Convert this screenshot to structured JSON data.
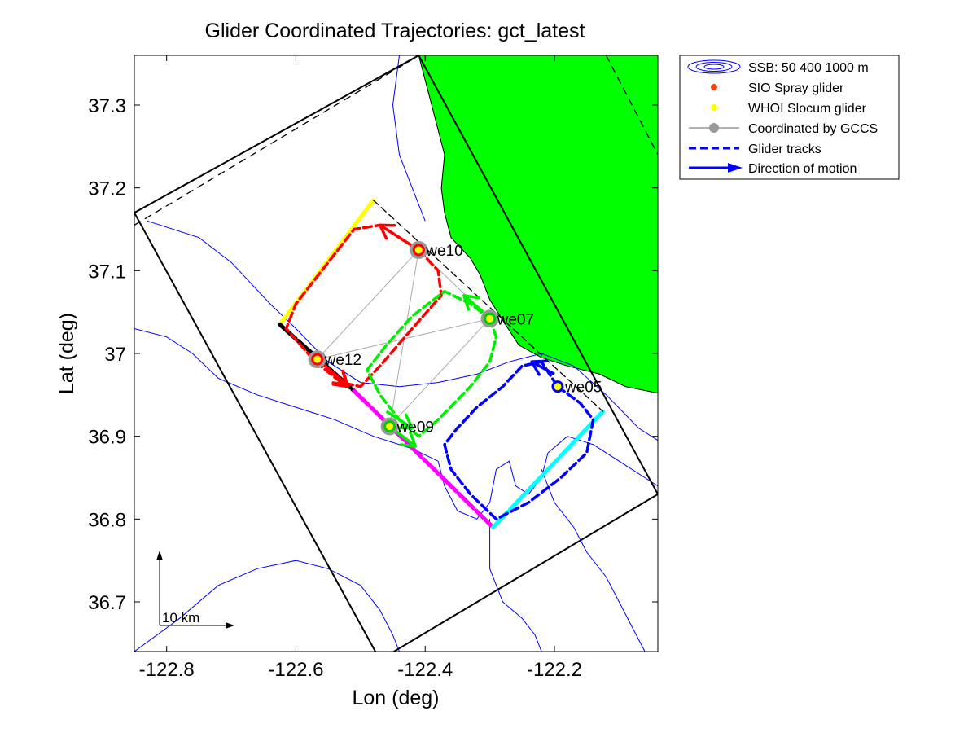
{
  "chart_data": {
    "type": "line",
    "title": "Glider Coordinated Trajectories: gct_latest",
    "xlabel": "Lon (deg)",
    "ylabel": "Lat (deg)",
    "xlim": [
      -122.85,
      -122.04
    ],
    "ylim": [
      36.64,
      37.36
    ],
    "xticks": [
      -122.8,
      -122.6,
      -122.4,
      -122.2
    ],
    "xtick_labels": [
      "-122.8",
      "-122.6",
      "-122.4",
      "-122.2"
    ],
    "yticks": [
      36.7,
      36.8,
      36.9,
      37.0,
      37.1,
      37.2,
      37.3
    ],
    "ytick_labels": [
      "36.7",
      "36.8",
      "36.9",
      "37",
      "37.1",
      "37.2",
      "37.3"
    ],
    "grid": false,
    "legend_position": "outside-top-right",
    "legend": [
      {
        "label": "SSB: 50   400  1000 m",
        "symbol": "contour-ellipses",
        "color": "#0000ff"
      },
      {
        "label": "SIO Spray glider",
        "symbol": "dot",
        "color": "#ff4000"
      },
      {
        "label": "WHOI Slocum glider",
        "symbol": "dot",
        "color": "#ffff00"
      },
      {
        "label": "Coordinated by GCCS",
        "symbol": "line-circle",
        "color": "#999999"
      },
      {
        "label": "Glider tracks",
        "symbol": "dashed-line",
        "color": "#0000ff"
      },
      {
        "label": "Direction of motion",
        "symbol": "arrow",
        "color": "#0000ff"
      }
    ],
    "land": {
      "color": "#00ff00",
      "boundary": [
        [
          -122.41,
          37.36
        ],
        [
          -122.39,
          37.3
        ],
        [
          -122.37,
          37.24
        ],
        [
          -122.375,
          37.2
        ],
        [
          -122.37,
          37.17
        ],
        [
          -122.36,
          37.14
        ],
        [
          -122.33,
          37.115
        ],
        [
          -122.315,
          37.095
        ],
        [
          -122.3,
          37.065
        ],
        [
          -122.28,
          37.04
        ],
        [
          -122.255,
          37.01
        ],
        [
          -122.22,
          36.995
        ],
        [
          -122.18,
          36.985
        ],
        [
          -122.13,
          36.975
        ],
        [
          -122.09,
          36.96
        ],
        [
          -122.04,
          36.952
        ],
        [
          -122.04,
          37.36
        ]
      ]
    },
    "bathymetry_contours": [
      {
        "depth_m": 50,
        "color": "#0000ff",
        "points": [
          [
            -122.83,
            37.16
          ],
          [
            -122.75,
            37.14
          ],
          [
            -122.7,
            37.11
          ],
          [
            -122.64,
            37.06
          ],
          [
            -122.6,
            37.03
          ],
          [
            -122.55,
            36.99
          ],
          [
            -122.5,
            36.965
          ],
          [
            -122.44,
            36.96
          ],
          [
            -122.38,
            36.965
          ],
          [
            -122.32,
            36.975
          ],
          [
            -122.27,
            36.99
          ],
          [
            -122.22,
            37.0
          ],
          [
            -122.17,
            36.985
          ],
          [
            -122.12,
            36.95
          ],
          [
            -122.07,
            36.91
          ],
          [
            -122.04,
            36.895
          ]
        ]
      },
      {
        "depth_m": 400,
        "color": "#0000ff",
        "points": [
          [
            -122.85,
            37.03
          ],
          [
            -122.8,
            37.02
          ],
          [
            -122.76,
            37.0
          ],
          [
            -122.72,
            36.97
          ],
          [
            -122.66,
            36.95
          ],
          [
            -122.6,
            36.935
          ],
          [
            -122.54,
            36.92
          ],
          [
            -122.48,
            36.9
          ],
          [
            -122.42,
            36.885
          ],
          [
            -122.38,
            36.87
          ],
          [
            -122.37,
            36.84
          ],
          [
            -122.35,
            36.81
          ],
          [
            -122.32,
            36.8
          ],
          [
            -122.3,
            36.82
          ],
          [
            -122.29,
            36.86
          ],
          [
            -122.27,
            36.87
          ],
          [
            -122.26,
            36.84
          ],
          [
            -122.24,
            36.83
          ],
          [
            -122.22,
            36.85
          ],
          [
            -122.21,
            36.88
          ],
          [
            -122.18,
            36.9
          ],
          [
            -122.14,
            36.89
          ],
          [
            -122.1,
            36.87
          ],
          [
            -122.06,
            36.85
          ],
          [
            -122.04,
            36.84
          ]
        ]
      },
      {
        "depth_m": 1000,
        "color": "#0000ff",
        "points": [
          [
            -122.3,
            36.8
          ],
          [
            -122.3,
            36.74
          ],
          [
            -122.28,
            36.7
          ],
          [
            -122.25,
            36.68
          ],
          [
            -122.23,
            36.66
          ],
          [
            -122.22,
            36.64
          ]
        ]
      },
      {
        "depth_m": 1000,
        "color": "#0000ff",
        "points": [
          [
            -122.22,
            36.86
          ],
          [
            -122.2,
            36.82
          ],
          [
            -122.17,
            36.79
          ],
          [
            -122.15,
            36.76
          ],
          [
            -122.12,
            36.73
          ],
          [
            -122.1,
            36.7
          ],
          [
            -122.08,
            36.67
          ],
          [
            -122.06,
            36.64
          ]
        ]
      },
      {
        "depth_m": 1000,
        "color": "#0000ff",
        "points": [
          [
            -122.85,
            36.64
          ],
          [
            -122.78,
            36.68
          ],
          [
            -122.72,
            36.72
          ],
          [
            -122.66,
            36.74
          ],
          [
            -122.6,
            36.75
          ],
          [
            -122.55,
            36.74
          ],
          [
            -122.5,
            36.72
          ],
          [
            -122.47,
            36.69
          ],
          [
            -122.45,
            36.66
          ],
          [
            -122.44,
            36.64
          ]
        ]
      },
      {
        "depth_m": 50,
        "color": "#0000ff",
        "points": [
          [
            -122.44,
            37.36
          ],
          [
            -122.45,
            37.3
          ],
          [
            -122.44,
            37.24
          ],
          [
            -122.42,
            37.2
          ],
          [
            -122.4,
            37.16
          ]
        ]
      }
    ],
    "domain_boundary": {
      "solid": [
        [
          -122.85,
          37.17
        ],
        [
          -122.41,
          37.36
        ],
        [
          -122.04,
          36.83
        ],
        [
          -122.47,
          36.63
        ],
        [
          -122.85,
          37.17
        ]
      ],
      "dashed": [
        [
          -122.85,
          37.155
        ],
        [
          -122.42,
          37.355
        ]
      ],
      "dashed_right": [
        [
          -122.12,
          37.36
        ],
        [
          -122.04,
          37.24
        ]
      ]
    },
    "coordination_links": [
      [
        "we10",
        "we12"
      ],
      [
        "we10",
        "we07"
      ],
      [
        "we10",
        "we09"
      ],
      [
        "we12",
        "we07"
      ],
      [
        "we12",
        "we09"
      ],
      [
        "we07",
        "we09"
      ]
    ],
    "racetrack_legs": [
      {
        "color": "#ffff00",
        "points": [
          [
            -122.625,
            37.035
          ],
          [
            -122.48,
            37.185
          ]
        ]
      },
      {
        "color": "#000000",
        "points": [
          [
            -122.625,
            37.035
          ],
          [
            -122.51,
            36.955
          ]
        ]
      },
      {
        "color": "#ff00ff",
        "points": [
          [
            -122.51,
            36.955
          ],
          [
            -122.295,
            36.79
          ]
        ]
      },
      {
        "color": "#00ffff",
        "points": [
          [
            -122.295,
            36.79
          ],
          [
            -122.125,
            36.93
          ]
        ]
      },
      {
        "color": "#000000",
        "dashed": true,
        "points": [
          [
            -122.48,
            37.185
          ],
          [
            -122.32,
            37.07
          ],
          [
            -122.125,
            36.93
          ]
        ]
      }
    ],
    "series": [
      {
        "name": "we10",
        "color": "#ff0000",
        "glider": "SIO Spray",
        "position": [
          -122.41,
          37.125
        ],
        "direction": "northwest",
        "track": [
          [
            -122.41,
            37.125
          ],
          [
            -122.38,
            37.1
          ],
          [
            -122.375,
            37.07
          ],
          [
            -122.42,
            37.03
          ],
          [
            -122.47,
            36.985
          ],
          [
            -122.5,
            36.96
          ],
          [
            -122.53,
            36.965
          ],
          [
            -122.57,
            36.99
          ],
          [
            -122.615,
            37.03
          ],
          [
            -122.6,
            37.06
          ],
          [
            -122.55,
            37.11
          ],
          [
            -122.51,
            37.15
          ],
          [
            -122.47,
            37.155
          ],
          [
            -122.44,
            37.14
          ],
          [
            -122.41,
            37.125
          ]
        ],
        "arrows": [
          {
            "from": [
              -122.42,
              37.13
            ],
            "to": [
              -122.47,
              37.155
            ]
          },
          {
            "from": [
              -122.55,
              36.98
            ],
            "to": [
              -122.52,
              36.96
            ]
          }
        ]
      },
      {
        "name": "we07",
        "color": "#00ee00",
        "glider": "WHOI Slocum",
        "position": [
          -122.3,
          37.042
        ],
        "direction": "northwest",
        "track": [
          [
            -122.3,
            37.042
          ],
          [
            -122.29,
            37.02
          ],
          [
            -122.3,
            36.99
          ],
          [
            -122.33,
            36.96
          ],
          [
            -122.38,
            36.92
          ],
          [
            -122.41,
            36.9
          ],
          [
            -122.44,
            36.92
          ],
          [
            -122.47,
            36.95
          ],
          [
            -122.49,
            36.98
          ],
          [
            -122.46,
            37.01
          ],
          [
            -122.42,
            37.045
          ],
          [
            -122.37,
            37.075
          ],
          [
            -122.33,
            37.06
          ],
          [
            -122.3,
            37.042
          ]
        ],
        "arrows": [
          {
            "from": [
              -122.31,
              37.05
            ],
            "to": [
              -122.34,
              37.07
            ]
          },
          {
            "from": [
              -122.46,
              36.93
            ],
            "to": [
              -122.42,
              36.91
            ]
          }
        ]
      },
      {
        "name": "we12",
        "color": "#ff0000",
        "glider": "SIO Spray",
        "position": [
          -122.567,
          36.993
        ],
        "direction": "southeast",
        "track": [],
        "arrows": []
      },
      {
        "name": "we09",
        "color": "#ffff00",
        "glider": "WHOI Slocum",
        "position": [
          -122.455,
          36.912
        ],
        "direction": "southeast",
        "track": [],
        "arrows": []
      },
      {
        "name": "we05",
        "color": "#0000ff",
        "glider": "WHOI Slocum",
        "position": [
          -122.195,
          36.96
        ],
        "direction": "northwest",
        "track": [
          [
            -122.195,
            36.96
          ],
          [
            -122.16,
            36.94
          ],
          [
            -122.14,
            36.92
          ],
          [
            -122.15,
            36.88
          ],
          [
            -122.19,
            36.85
          ],
          [
            -122.24,
            36.82
          ],
          [
            -122.29,
            36.8
          ],
          [
            -122.33,
            36.83
          ],
          [
            -122.36,
            36.86
          ],
          [
            -122.37,
            36.89
          ],
          [
            -122.35,
            36.91
          ],
          [
            -122.32,
            36.935
          ],
          [
            -122.28,
            36.96
          ],
          [
            -122.25,
            36.985
          ],
          [
            -122.22,
            36.99
          ],
          [
            -122.195,
            36.96
          ]
        ],
        "arrows": [
          {
            "from": [
              -122.2,
              36.975
            ],
            "to": [
              -122.235,
              36.99
            ]
          }
        ]
      }
    ],
    "scale_bar_label": "10 km"
  }
}
